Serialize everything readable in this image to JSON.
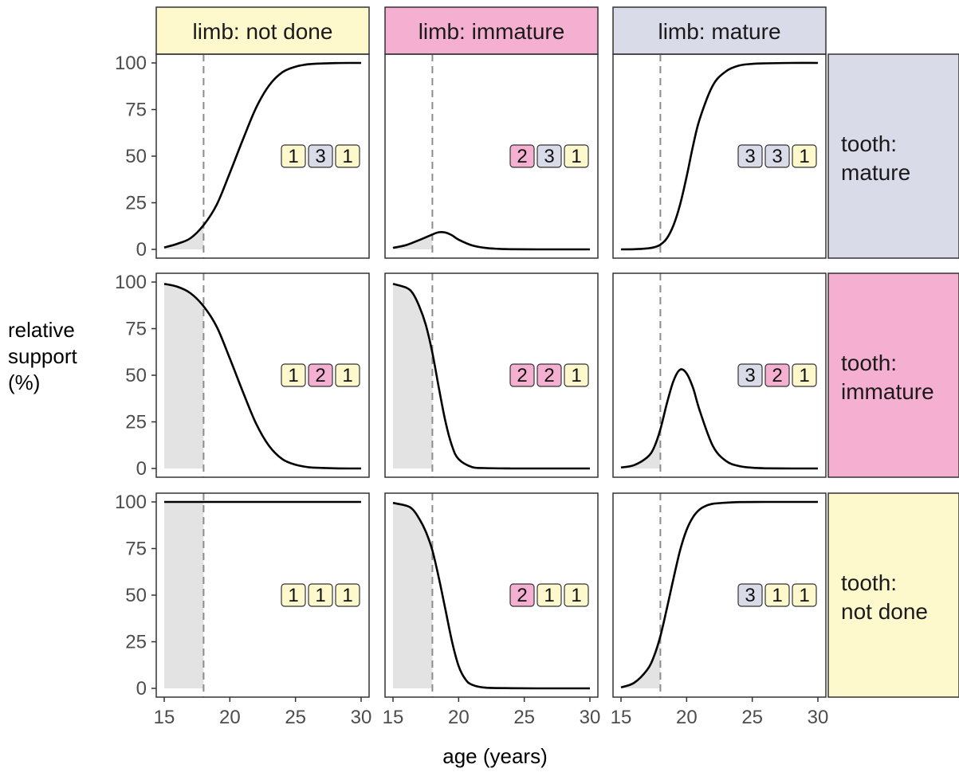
{
  "chart_data": {
    "type": "line",
    "xlabel": "age (years)",
    "ylabel_lines": [
      "relative",
      "support",
      "(%)"
    ],
    "xlim": [
      15,
      30
    ],
    "ylim": [
      0,
      100
    ],
    "x_ticks": [
      "15",
      "20",
      "25",
      "30"
    ],
    "y_ticks": [
      "0",
      "25",
      "50",
      "75",
      "100"
    ],
    "reference_age": 18,
    "shaded_region": [
      15,
      18
    ],
    "grid": false,
    "colors": {
      "not_done": "#fdf9cd",
      "immature": "#f5afd0",
      "mature": "#d9dbe9",
      "shade": "#e3e3e3",
      "dashed_line": "#8c8c8c"
    },
    "col_strips": [
      {
        "label": "limb: not done",
        "color": "#fdf9cd"
      },
      {
        "label": "limb: immature",
        "color": "#f5afd0"
      },
      {
        "label": "limb: mature",
        "color": "#d9dbe9"
      }
    ],
    "row_strips": [
      {
        "lines": [
          "tooth:",
          "mature"
        ],
        "color": "#d9dbe9"
      },
      {
        "lines": [
          "tooth:",
          "immature"
        ],
        "color": "#f5afd0"
      },
      {
        "lines": [
          "tooth:",
          "not done"
        ],
        "color": "#fdf9cd"
      }
    ],
    "panels": [
      {
        "row": 0,
        "col": 0,
        "badges": [
          "1",
          "3",
          "1"
        ],
        "x": [
          15,
          16,
          17,
          18,
          19,
          20,
          21,
          22,
          23,
          24,
          25,
          26,
          27,
          28,
          29,
          30
        ],
        "y": [
          1,
          3,
          6,
          13,
          24,
          41,
          59,
          76,
          88,
          95,
          98,
          99.3,
          99.7,
          99.9,
          100,
          100
        ]
      },
      {
        "row": 0,
        "col": 1,
        "badges": [
          "2",
          "3",
          "1"
        ],
        "x": [
          15,
          16,
          17,
          18,
          18.5,
          19,
          19.5,
          20,
          21,
          22,
          23,
          24,
          26,
          28,
          30
        ],
        "y": [
          0.8,
          2.3,
          5,
          8,
          9.2,
          9,
          7.5,
          5.2,
          2.2,
          0.8,
          0.3,
          0.1,
          0,
          0,
          0
        ]
      },
      {
        "row": 0,
        "col": 2,
        "badges": [
          "3",
          "3",
          "1"
        ],
        "x": [
          15,
          16,
          17,
          17.5,
          18,
          18.5,
          19,
          19.5,
          20,
          20.5,
          21,
          22,
          23,
          24,
          25,
          26,
          28,
          30
        ],
        "y": [
          0,
          0.1,
          0.5,
          1.1,
          2.5,
          6,
          13,
          24,
          39,
          56,
          70,
          88,
          95.5,
          98.6,
          99.5,
          99.8,
          100,
          100
        ]
      },
      {
        "row": 1,
        "col": 0,
        "badges": [
          "1",
          "2",
          "1"
        ],
        "x": [
          15,
          16,
          17,
          18,
          19,
          20,
          21,
          22,
          23,
          24,
          25,
          26,
          27,
          28,
          29,
          30
        ],
        "y": [
          99,
          97.5,
          94,
          87,
          76,
          59,
          41,
          24,
          12,
          5,
          2,
          0.7,
          0.3,
          0.1,
          0,
          0
        ]
      },
      {
        "row": 1,
        "col": 1,
        "badges": [
          "2",
          "2",
          "1"
        ],
        "x": [
          15,
          16,
          16.5,
          17,
          17.5,
          18,
          18.5,
          19,
          19.5,
          20,
          21,
          22,
          24,
          26,
          28,
          30
        ],
        "y": [
          99,
          97,
          94,
          87,
          77,
          62,
          43,
          25,
          12,
          5,
          0.8,
          0.2,
          0,
          0,
          0,
          0
        ]
      },
      {
        "row": 1,
        "col": 2,
        "badges": [
          "3",
          "2",
          "1"
        ],
        "x": [
          15,
          16,
          17,
          17.5,
          18,
          18.5,
          19,
          19.5,
          20,
          20.5,
          21,
          22,
          23,
          24,
          25,
          26,
          28,
          30
        ],
        "y": [
          0.5,
          1.8,
          6,
          11,
          21,
          35,
          47,
          53,
          51,
          43,
          31,
          12,
          4,
          1.3,
          0.4,
          0.1,
          0,
          0
        ]
      },
      {
        "row": 2,
        "col": 0,
        "badges": [
          "1",
          "1",
          "1"
        ],
        "x": [
          15,
          18,
          20,
          25,
          30
        ],
        "y": [
          100,
          100,
          100,
          100,
          100
        ]
      },
      {
        "row": 2,
        "col": 1,
        "badges": [
          "2",
          "1",
          "1"
        ],
        "x": [
          15,
          16,
          16.5,
          17,
          17.5,
          18,
          18.5,
          19,
          19.5,
          20,
          20.5,
          21,
          22,
          24,
          26,
          28,
          30
        ],
        "y": [
          99.5,
          98,
          96,
          91,
          84,
          74,
          59,
          42,
          25,
          12,
          5,
          2,
          0.4,
          0.1,
          0,
          0,
          0
        ]
      },
      {
        "row": 2,
        "col": 2,
        "badges": [
          "3",
          "1",
          "1"
        ],
        "x": [
          15,
          16,
          17,
          17.5,
          18,
          18.5,
          19,
          19.5,
          20,
          20.5,
          21,
          21.5,
          22,
          23,
          24,
          26,
          28,
          30
        ],
        "y": [
          0.5,
          3,
          10,
          17,
          28,
          43,
          59,
          74,
          85,
          92,
          96,
          98,
          99,
          99.6,
          99.9,
          100,
          100,
          100
        ]
      }
    ]
  }
}
